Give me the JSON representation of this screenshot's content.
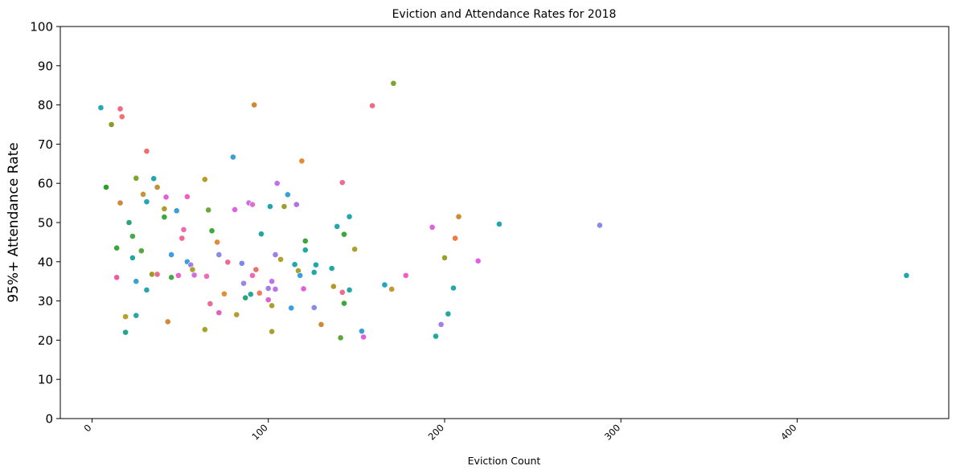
{
  "chart_data": {
    "type": "scatter",
    "title": "Eviction and Attendance Rates for 2018",
    "xlabel": "Eviction Count",
    "ylabel": "95%+ Attendance Rate",
    "xlim": [
      -18,
      486
    ],
    "ylim": [
      0,
      100
    ],
    "xticks": [
      0,
      100,
      200,
      300,
      400
    ],
    "yticks": [
      0,
      10,
      20,
      30,
      40,
      50,
      60,
      70,
      80,
      90,
      100
    ],
    "xtick_rotation": 45,
    "grid": false,
    "legend": "none",
    "points": [
      {
        "x": 5,
        "y": 79.3,
        "color": "#22a7b6"
      },
      {
        "x": 8,
        "y": 59,
        "color": "#2ca02c"
      },
      {
        "x": 11,
        "y": 75,
        "color": "#8c9a2a"
      },
      {
        "x": 14,
        "y": 43.5,
        "color": "#3aa63a"
      },
      {
        "x": 14,
        "y": 36,
        "color": "#ee5aa0"
      },
      {
        "x": 16,
        "y": 79,
        "color": "#f06a84"
      },
      {
        "x": 16,
        "y": 55,
        "color": "#c98a3a"
      },
      {
        "x": 17,
        "y": 77,
        "color": "#f27272"
      },
      {
        "x": 19,
        "y": 22,
        "color": "#21a58c"
      },
      {
        "x": 19,
        "y": 26,
        "color": "#b8a02a"
      },
      {
        "x": 21,
        "y": 50,
        "color": "#2aa57a"
      },
      {
        "x": 23,
        "y": 46.5,
        "color": "#46a94a"
      },
      {
        "x": 23,
        "y": 41,
        "color": "#22a7a0"
      },
      {
        "x": 25,
        "y": 61.3,
        "color": "#7ea62d"
      },
      {
        "x": 25,
        "y": 35,
        "color": "#3aa0d0"
      },
      {
        "x": 25,
        "y": 26.3,
        "color": "#2ba6a0"
      },
      {
        "x": 28,
        "y": 42.8,
        "color": "#55a83a"
      },
      {
        "x": 29,
        "y": 57.2,
        "color": "#c8943a"
      },
      {
        "x": 31,
        "y": 68.2,
        "color": "#f07070"
      },
      {
        "x": 31,
        "y": 55.3,
        "color": "#22a7b0"
      },
      {
        "x": 31,
        "y": 32.8,
        "color": "#2aa5a8"
      },
      {
        "x": 34,
        "y": 36.8,
        "color": "#9a9a2a"
      },
      {
        "x": 35,
        "y": 61.2,
        "color": "#22a7a8"
      },
      {
        "x": 37,
        "y": 59,
        "color": "#c0903a"
      },
      {
        "x": 37,
        "y": 36.8,
        "color": "#ef6a8a"
      },
      {
        "x": 41,
        "y": 53.5,
        "color": "#b09a2a"
      },
      {
        "x": 41,
        "y": 51.4,
        "color": "#3aa83a"
      },
      {
        "x": 42,
        "y": 56.5,
        "color": "#e060d8"
      },
      {
        "x": 43,
        "y": 24.7,
        "color": "#d08a3a"
      },
      {
        "x": 45,
        "y": 41.8,
        "color": "#3a9ee0"
      },
      {
        "x": 45,
        "y": 36,
        "color": "#4aa84a"
      },
      {
        "x": 48,
        "y": 53,
        "color": "#3a9ed8"
      },
      {
        "x": 49,
        "y": 36.5,
        "color": "#e860c8"
      },
      {
        "x": 51,
        "y": 46,
        "color": "#f06a8a"
      },
      {
        "x": 52,
        "y": 48.2,
        "color": "#ef6ab0"
      },
      {
        "x": 54,
        "y": 56.6,
        "color": "#f060c0"
      },
      {
        "x": 54,
        "y": 40,
        "color": "#3aa0d8"
      },
      {
        "x": 56,
        "y": 39.2,
        "color": "#a080e8"
      },
      {
        "x": 57,
        "y": 38,
        "color": "#b0a030"
      },
      {
        "x": 58,
        "y": 36.6,
        "color": "#d070e0"
      },
      {
        "x": 64,
        "y": 61,
        "color": "#b89a2a"
      },
      {
        "x": 64,
        "y": 22.7,
        "color": "#a8a02a"
      },
      {
        "x": 65,
        "y": 36.3,
        "color": "#f06ab8"
      },
      {
        "x": 66,
        "y": 53.2,
        "color": "#6aa83a"
      },
      {
        "x": 67,
        "y": 29.3,
        "color": "#f06a98"
      },
      {
        "x": 68,
        "y": 47.9,
        "color": "#3aa83a"
      },
      {
        "x": 71,
        "y": 45,
        "color": "#e08a3a"
      },
      {
        "x": 72,
        "y": 41.8,
        "color": "#8a8ae8"
      },
      {
        "x": 72,
        "y": 27,
        "color": "#e060c0"
      },
      {
        "x": 75,
        "y": 31.8,
        "color": "#e09030"
      },
      {
        "x": 77,
        "y": 39.9,
        "color": "#f06a90"
      },
      {
        "x": 80,
        "y": 66.7,
        "color": "#3a9ed8"
      },
      {
        "x": 81,
        "y": 53.3,
        "color": "#e060e8"
      },
      {
        "x": 82,
        "y": 26.5,
        "color": "#b0a030"
      },
      {
        "x": 85,
        "y": 39.6,
        "color": "#7a88e8"
      },
      {
        "x": 86,
        "y": 34.5,
        "color": "#9a88e8"
      },
      {
        "x": 87,
        "y": 30.8,
        "color": "#2aa57a"
      },
      {
        "x": 89,
        "y": 55,
        "color": "#c070e8"
      },
      {
        "x": 90,
        "y": 31.7,
        "color": "#2aa59a"
      },
      {
        "x": 91,
        "y": 54.6,
        "color": "#e070c8"
      },
      {
        "x": 91,
        "y": 36.5,
        "color": "#ee6ab0"
      },
      {
        "x": 92,
        "y": 80,
        "color": "#d08a30"
      },
      {
        "x": 93,
        "y": 38,
        "color": "#f07068"
      },
      {
        "x": 95,
        "y": 32,
        "color": "#f07a60"
      },
      {
        "x": 96,
        "y": 47.1,
        "color": "#22a7a0"
      },
      {
        "x": 100,
        "y": 33.2,
        "color": "#a080e8"
      },
      {
        "x": 100,
        "y": 30.3,
        "color": "#e060d0"
      },
      {
        "x": 101,
        "y": 54.1,
        "color": "#22a7a8"
      },
      {
        "x": 102,
        "y": 35,
        "color": "#c070e8"
      },
      {
        "x": 102,
        "y": 28.8,
        "color": "#a8a02a"
      },
      {
        "x": 102,
        "y": 22.2,
        "color": "#a8a030"
      },
      {
        "x": 104,
        "y": 41.8,
        "color": "#9a80e8"
      },
      {
        "x": 104,
        "y": 33,
        "color": "#c070e8"
      },
      {
        "x": 105,
        "y": 60,
        "color": "#c070e8"
      },
      {
        "x": 107,
        "y": 40.6,
        "color": "#b0a030"
      },
      {
        "x": 109,
        "y": 54.1,
        "color": "#9aa02a"
      },
      {
        "x": 111,
        "y": 57.1,
        "color": "#3aa0d8"
      },
      {
        "x": 113,
        "y": 28.2,
        "color": "#3a9ee0"
      },
      {
        "x": 115,
        "y": 39.3,
        "color": "#22a7b0"
      },
      {
        "x": 116,
        "y": 54.6,
        "color": "#b070e8"
      },
      {
        "x": 117,
        "y": 37.7,
        "color": "#a8a030"
      },
      {
        "x": 118,
        "y": 36.5,
        "color": "#3aa0d8"
      },
      {
        "x": 119,
        "y": 65.7,
        "color": "#e08a3a"
      },
      {
        "x": 120,
        "y": 33.1,
        "color": "#e060d8"
      },
      {
        "x": 121,
        "y": 45.3,
        "color": "#3aa83a"
      },
      {
        "x": 121,
        "y": 43,
        "color": "#22a7a0"
      },
      {
        "x": 126,
        "y": 37.3,
        "color": "#22a7b0"
      },
      {
        "x": 126,
        "y": 28.3,
        "color": "#8a88e8"
      },
      {
        "x": 127,
        "y": 39.2,
        "color": "#22a7a8"
      },
      {
        "x": 130,
        "y": 24,
        "color": "#d08a3a"
      },
      {
        "x": 136,
        "y": 38.3,
        "color": "#22a7a8"
      },
      {
        "x": 137,
        "y": 33.7,
        "color": "#b09a2a"
      },
      {
        "x": 139,
        "y": 49,
        "color": "#22a7b0"
      },
      {
        "x": 141,
        "y": 20.6,
        "color": "#5aa83a"
      },
      {
        "x": 142,
        "y": 60.2,
        "color": "#f06a98"
      },
      {
        "x": 142,
        "y": 32.2,
        "color": "#f06a90"
      },
      {
        "x": 143,
        "y": 47,
        "color": "#3aa83a"
      },
      {
        "x": 143,
        "y": 29.4,
        "color": "#3aa83a"
      },
      {
        "x": 146,
        "y": 51.5,
        "color": "#22a7b0"
      },
      {
        "x": 146,
        "y": 32.8,
        "color": "#22a7a8"
      },
      {
        "x": 149,
        "y": 43.2,
        "color": "#a8a030"
      },
      {
        "x": 153,
        "y": 22.3,
        "color": "#3a9ed8"
      },
      {
        "x": 154,
        "y": 20.8,
        "color": "#e060e0"
      },
      {
        "x": 159,
        "y": 79.8,
        "color": "#f06a84"
      },
      {
        "x": 166,
        "y": 34.1,
        "color": "#22a7b8"
      },
      {
        "x": 170,
        "y": 33,
        "color": "#c09a30"
      },
      {
        "x": 171,
        "y": 85.5,
        "color": "#7aa62d"
      },
      {
        "x": 178,
        "y": 36.5,
        "color": "#f060c0"
      },
      {
        "x": 193,
        "y": 48.8,
        "color": "#e060e0"
      },
      {
        "x": 195,
        "y": 21,
        "color": "#22a7a0"
      },
      {
        "x": 198,
        "y": 24,
        "color": "#a080e8"
      },
      {
        "x": 200,
        "y": 41,
        "color": "#9aa02a"
      },
      {
        "x": 202,
        "y": 26.7,
        "color": "#22a7a8"
      },
      {
        "x": 205,
        "y": 33.3,
        "color": "#22a7b0"
      },
      {
        "x": 206,
        "y": 46,
        "color": "#f07a40"
      },
      {
        "x": 208,
        "y": 51.5,
        "color": "#d08a30"
      },
      {
        "x": 219,
        "y": 40.2,
        "color": "#e060e0"
      },
      {
        "x": 231,
        "y": 49.6,
        "color": "#22a7b0"
      },
      {
        "x": 288,
        "y": 49.3,
        "color": "#8a88e8"
      },
      {
        "x": 462,
        "y": 36.5,
        "color": "#22a7a8"
      }
    ]
  }
}
